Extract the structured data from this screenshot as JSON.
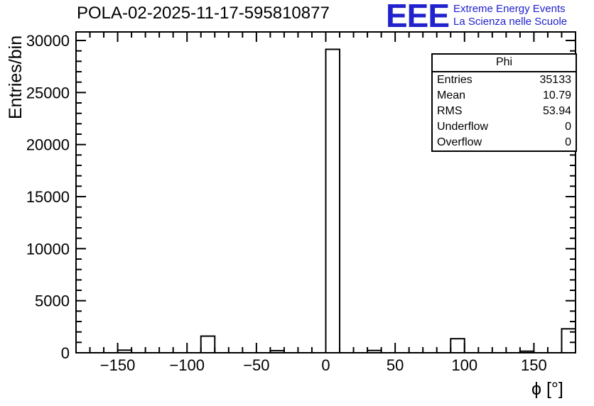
{
  "header": {
    "title": "POLA-02-2025-11-17-595810877",
    "logo": {
      "acronym": "EEE",
      "line1": "Extreme Energy Events",
      "line2": "La Scienza nelle Scuole"
    }
  },
  "colors": {
    "logo_blue": "#2121cd",
    "histogram_line": "#000000",
    "background": "#ffffff"
  },
  "stats": {
    "title": "Phi",
    "rows": [
      {
        "label": "Entries",
        "value": "35133"
      },
      {
        "label": "Mean",
        "value": "10.79"
      },
      {
        "label": "RMS",
        "value": "53.94"
      },
      {
        "label": "Underflow",
        "value": "0"
      },
      {
        "label": "Overflow",
        "value": "0"
      }
    ]
  },
  "chart_data": {
    "type": "bar",
    "title": "POLA-02-2025-11-17-595810877",
    "xlabel": "ϕ [°]",
    "ylabel": "Entries/bin",
    "xlim": [
      -180,
      180
    ],
    "ylim": [
      0,
      30820
    ],
    "bin_width": 10,
    "grid": false,
    "legend": false,
    "bins": [
      {
        "x0": -150,
        "x1": -140,
        "count": 250
      },
      {
        "x0": -90,
        "x1": -80,
        "count": 1600
      },
      {
        "x0": -40,
        "x1": -30,
        "count": 200
      },
      {
        "x0": 0,
        "x1": 10,
        "count": 29150
      },
      {
        "x0": 30,
        "x1": 40,
        "count": 220
      },
      {
        "x0": 90,
        "x1": 100,
        "count": 1350
      },
      {
        "x0": 140,
        "x1": 150,
        "count": 150
      },
      {
        "x0": 170,
        "x1": 180,
        "count": 2300
      }
    ],
    "xticks": [
      {
        "v": -150,
        "label": "−150"
      },
      {
        "v": -100,
        "label": "−100"
      },
      {
        "v": -50,
        "label": "−50"
      },
      {
        "v": 0,
        "label": "0"
      },
      {
        "v": 50,
        "label": "50"
      },
      {
        "v": 100,
        "label": "100"
      },
      {
        "v": 150,
        "label": "150"
      }
    ],
    "yticks": [
      {
        "v": 0,
        "label": "0"
      },
      {
        "v": 5000,
        "label": "5000"
      },
      {
        "v": 10000,
        "label": "10000"
      },
      {
        "v": 15000,
        "label": "15000"
      },
      {
        "v": 20000,
        "label": "20000"
      },
      {
        "v": 25000,
        "label": "25000"
      },
      {
        "v": 30000,
        "label": "30000"
      }
    ],
    "x_minor_step": 10,
    "y_minor_step": 1000
  }
}
